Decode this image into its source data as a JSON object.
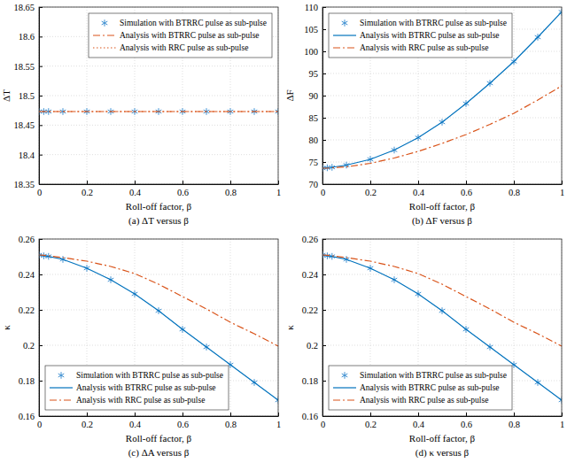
{
  "chart_data": [
    {
      "type": "line",
      "title": "(a) ΔT versus β",
      "x_label": "Roll-off factor, β",
      "y_label": "ΔT",
      "x": [
        0,
        0.02,
        0.04,
        0.1,
        0.2,
        0.3,
        0.4,
        0.5,
        0.6,
        0.7,
        0.8,
        0.9,
        1
      ],
      "xlim": [
        0,
        1
      ],
      "xticks": [
        0,
        0.2,
        0.4,
        0.6,
        0.8,
        1
      ],
      "ylim": [
        18.35,
        18.65
      ],
      "yticks": [
        18.35,
        18.4,
        18.45,
        18.5,
        18.55,
        18.6,
        18.65
      ],
      "grid": true,
      "legend": "upper right",
      "series": [
        {
          "name": "Simulation with BTRRC pulse as sub-pulse",
          "color": "#3d8fd1",
          "marker": "asterisk",
          "line_style": "none",
          "values": [
            18.473,
            18.473,
            18.473,
            18.473,
            18.473,
            18.473,
            18.473,
            18.473,
            18.473,
            18.473,
            18.473,
            18.473,
            18.473
          ]
        },
        {
          "name": "Analysis with BTRRC pulse as sub-pulse",
          "color": "#d95319",
          "line_style": "dashdot",
          "values": [
            18.473,
            18.473,
            18.473,
            18.473,
            18.473,
            18.473,
            18.473,
            18.473,
            18.473,
            18.473,
            18.473,
            18.473,
            18.473
          ]
        },
        {
          "name": "Analysis with RRC pulse as sub-pulse",
          "color": "#d95319",
          "line_style": "dotted",
          "values": [
            18.473,
            18.473,
            18.473,
            18.473,
            18.473,
            18.473,
            18.473,
            18.473,
            18.473,
            18.473,
            18.473,
            18.473,
            18.473
          ]
        }
      ]
    },
    {
      "type": "line",
      "title": "(b) ΔF versus β",
      "x_label": "Roll-off factor, β",
      "y_label": "ΔF",
      "x": [
        0,
        0.02,
        0.04,
        0.1,
        0.2,
        0.3,
        0.4,
        0.5,
        0.6,
        0.7,
        0.8,
        0.9,
        1
      ],
      "xlim": [
        0,
        1
      ],
      "xticks": [
        0,
        0.2,
        0.4,
        0.6,
        0.8,
        1
      ],
      "ylim": [
        70,
        110
      ],
      "yticks": [
        70,
        75,
        80,
        85,
        90,
        95,
        100,
        105,
        110
      ],
      "grid": true,
      "legend": "upper left",
      "series": [
        {
          "name": "Simulation with BTRRC pulse as sub-pulse",
          "color": "#3d8fd1",
          "marker": "asterisk",
          "line_style": "none",
          "values": [
            73.6,
            73.7,
            73.8,
            74.3,
            75.6,
            77.7,
            80.5,
            84.0,
            88.2,
            92.8,
            97.7,
            103.2,
            108.9
          ]
        },
        {
          "name": "Analysis with BTRRC pulse as sub-pulse",
          "color": "#0072bd",
          "line_style": "solid",
          "values": [
            73.6,
            73.7,
            73.8,
            74.3,
            75.6,
            77.7,
            80.5,
            84.0,
            88.2,
            92.8,
            97.7,
            103.2,
            108.9
          ]
        },
        {
          "name": "Analysis with RRC pulse as sub-pulse",
          "color": "#d95319",
          "line_style": "dashdot",
          "values": [
            73.6,
            73.6,
            73.7,
            73.9,
            74.7,
            75.9,
            77.4,
            79.2,
            81.2,
            83.5,
            86.0,
            89.0,
            92.2
          ]
        }
      ]
    },
    {
      "type": "line",
      "title": "(c) ΔA versus β",
      "x_label": "Roll-off factor, β",
      "y_label": "κ",
      "x": [
        0,
        0.02,
        0.04,
        0.1,
        0.2,
        0.3,
        0.4,
        0.5,
        0.6,
        0.7,
        0.8,
        0.9,
        1
      ],
      "xlim": [
        0,
        1
      ],
      "xticks": [
        0,
        0.2,
        0.4,
        0.6,
        0.8,
        1
      ],
      "ylim": [
        0.16,
        0.26
      ],
      "yticks": [
        0.16,
        0.18,
        0.2,
        0.22,
        0.24,
        0.26
      ],
      "grid": true,
      "legend": "lower left",
      "series": [
        {
          "name": "Simulation with BTRRC pulse as sub-pulse",
          "color": "#3d8fd1",
          "marker": "asterisk",
          "line_style": "none",
          "values": [
            0.251,
            0.2505,
            0.2502,
            0.2485,
            0.2435,
            0.237,
            0.229,
            0.2195,
            0.209,
            0.199,
            0.189,
            0.179,
            0.169
          ]
        },
        {
          "name": "Analysis with BTRRC pulse as sub-pulse",
          "color": "#0072bd",
          "line_style": "solid",
          "values": [
            0.251,
            0.2505,
            0.2502,
            0.2485,
            0.2435,
            0.237,
            0.229,
            0.2195,
            0.209,
            0.199,
            0.189,
            0.179,
            0.169
          ]
        },
        {
          "name": "Analysis with RRC pulse as sub-pulse",
          "color": "#d95319",
          "line_style": "dashdot",
          "values": [
            0.251,
            0.2508,
            0.2505,
            0.2495,
            0.2475,
            0.2445,
            0.2405,
            0.2345,
            0.2275,
            0.2205,
            0.213,
            0.2065,
            0.1995
          ]
        }
      ]
    },
    {
      "type": "line",
      "title": "(d) κ versus β",
      "x_label": "Roll-off factor, β",
      "y_label": "κ",
      "x": [
        0,
        0.02,
        0.04,
        0.1,
        0.2,
        0.3,
        0.4,
        0.5,
        0.6,
        0.7,
        0.8,
        0.9,
        1
      ],
      "xlim": [
        0,
        1
      ],
      "xticks": [
        0,
        0.2,
        0.4,
        0.6,
        0.8,
        1
      ],
      "ylim": [
        0.16,
        0.26
      ],
      "yticks": [
        0.16,
        0.18,
        0.2,
        0.22,
        0.24,
        0.26
      ],
      "grid": true,
      "legend": "lower left",
      "series": [
        {
          "name": "Simulation with BTRRC pulse as sub-pulse",
          "color": "#3d8fd1",
          "marker": "asterisk",
          "line_style": "none",
          "values": [
            0.251,
            0.2505,
            0.2502,
            0.2485,
            0.2435,
            0.237,
            0.229,
            0.2195,
            0.209,
            0.199,
            0.189,
            0.179,
            0.169
          ]
        },
        {
          "name": "Analysis with BTRRC pulse as sub-pulse",
          "color": "#0072bd",
          "line_style": "solid",
          "values": [
            0.251,
            0.2505,
            0.2502,
            0.2485,
            0.2435,
            0.237,
            0.229,
            0.2195,
            0.209,
            0.199,
            0.189,
            0.179,
            0.169
          ]
        },
        {
          "name": "Analysis with RRC pulse as sub-pulse",
          "color": "#d95319",
          "line_style": "dashdot",
          "values": [
            0.251,
            0.2508,
            0.2505,
            0.2495,
            0.2475,
            0.2445,
            0.2405,
            0.2345,
            0.2275,
            0.2205,
            0.213,
            0.2065,
            0.1995
          ]
        }
      ]
    }
  ]
}
